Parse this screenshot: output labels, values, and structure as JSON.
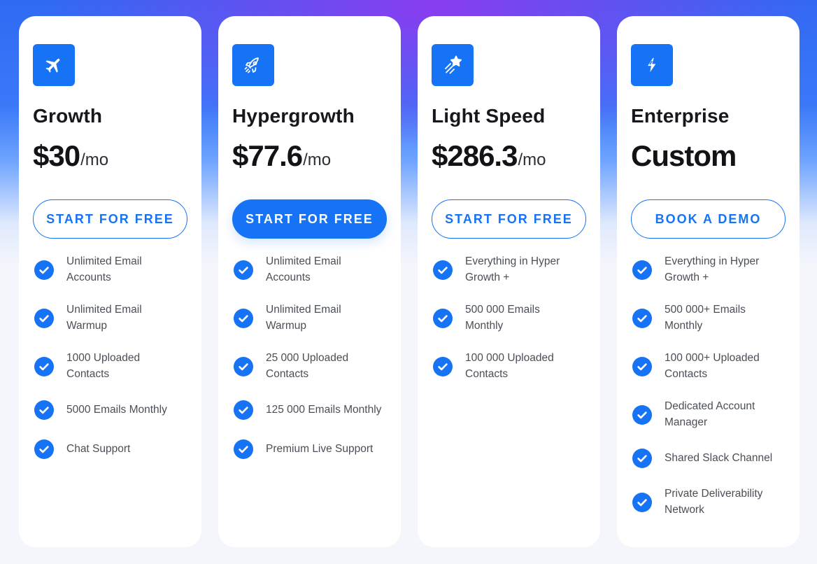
{
  "colors": {
    "accent": "#1673f5",
    "heading": "#16181d",
    "body_text": "#4a4e57",
    "card_background": "#ffffff"
  },
  "plans": [
    {
      "icon": "airplane-icon",
      "name": "Growth",
      "price": "$30",
      "period": "/mo",
      "cta_label": "START FOR FREE",
      "cta_style": "outline",
      "features": [
        "Unlimited Email Accounts",
        "Unlimited Email Warmup",
        "1000 Uploaded Contacts",
        "5000 Emails Monthly",
        "Chat Support"
      ]
    },
    {
      "icon": "rocket-icon",
      "name": "Hypergrowth",
      "price": "$77.6",
      "period": "/mo",
      "cta_label": "START FOR FREE",
      "cta_style": "filled",
      "features": [
        "Unlimited Email Accounts",
        "Unlimited Email Warmup",
        "25 000 Uploaded Contacts",
        "125 000 Emails Monthly",
        "Premium Live Support"
      ]
    },
    {
      "icon": "shooting-star-icon",
      "name": "Light Speed",
      "price": "$286.3",
      "period": "/mo",
      "cta_label": "START FOR FREE",
      "cta_style": "outline",
      "features": [
        "Everything in Hyper Growth +",
        "500 000 Emails Monthly",
        "100 000 Uploaded Contacts"
      ]
    },
    {
      "icon": "lightning-bolt-icon",
      "name": "Enterprise",
      "price": "Custom",
      "period": "",
      "cta_label": "BOOK A DEMO",
      "cta_style": "outline",
      "features": [
        "Everything in Hyper Growth +",
        "500 000+ Emails Monthly",
        "100 000+ Uploaded Contacts",
        "Dedicated Account Manager",
        "Shared Slack Channel",
        "Private Deliverability Network"
      ]
    }
  ]
}
